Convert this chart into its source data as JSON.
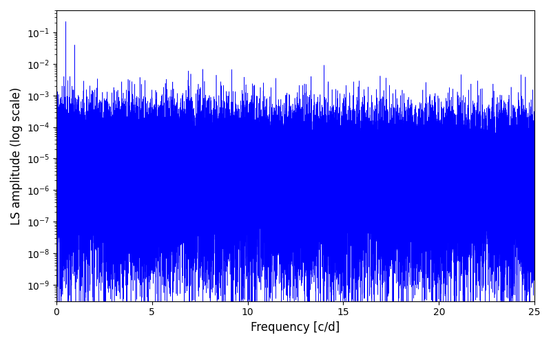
{
  "title": "",
  "xlabel": "Frequency [c/d]",
  "ylabel": "LS amplitude (log scale)",
  "xlim": [
    0,
    25
  ],
  "ylim": [
    3e-10,
    0.5
  ],
  "line_color": "#0000FF",
  "background_color": "#ffffff",
  "freq_max": 25.0,
  "n_points": 80000,
  "seed": 137,
  "xlabel_fontsize": 12,
  "ylabel_fontsize": 12,
  "tick_fontsize": 10,
  "xticks": [
    0,
    5,
    10,
    15,
    20,
    25
  ]
}
